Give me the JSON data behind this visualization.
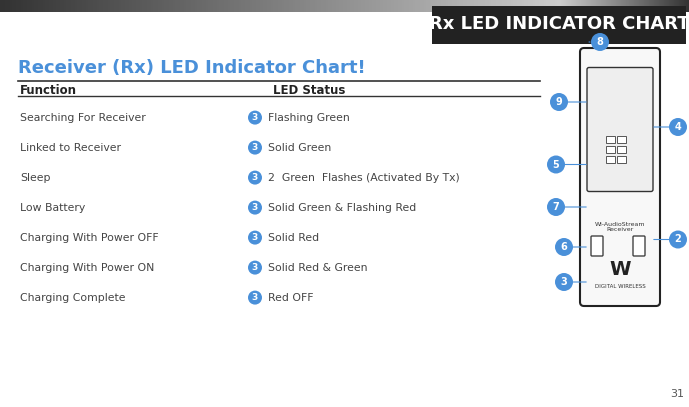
{
  "title_header": "Rx LED INDICATOR CHART",
  "watermark": "Wi-AudioStream",
  "page_number": "31",
  "chart_title": "Receiver (Rx) LED Indicator Chart!",
  "col_function": "Function",
  "col_led": "LED Status",
  "rows": [
    {
      "function": "Searching For Receiver",
      "led_status": "Flashing Green"
    },
    {
      "function": "Linked to Receiver",
      "led_status": "Solid Green"
    },
    {
      "function": "Sleep",
      "led_status": "2  Green  Flashes (Activated By Tx)"
    },
    {
      "function": "Low Battery",
      "led_status": "Solid Green & Flashing Red"
    },
    {
      "function": "Charging With Power OFF",
      "led_status": "Solid Red"
    },
    {
      "function": "Charging With Power ON",
      "led_status": "Solid Red & Green"
    },
    {
      "function": "Charging Complete",
      "led_status": "Red OFF"
    }
  ],
  "header_bar_color": "#222222",
  "header_text_color": "#ffffff",
  "title_color": "#4a90d9",
  "circle_color": "#4a90d9",
  "circle_text_color": "#ffffff",
  "bg_color": "#ffffff",
  "gradient_left": "#333333",
  "gradient_right": "#cccccc",
  "diagram_numbers": [
    "8",
    "9",
    "4",
    "5",
    "7",
    "6",
    "2",
    "3"
  ],
  "diagram_number_color": "#4a90d9"
}
